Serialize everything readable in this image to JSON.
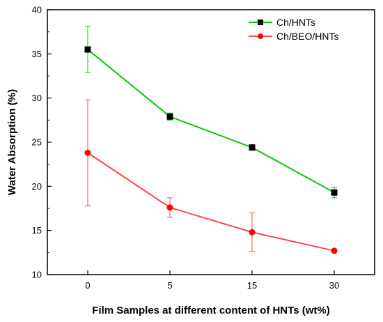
{
  "chart_data": {
    "type": "line",
    "title": "",
    "xlabel": "Film Samples at different content of HNTs (wt%)",
    "ylabel": "Water Absorption (%)",
    "categories": [
      "0",
      "5",
      "15",
      "30"
    ],
    "ylim": [
      10,
      40
    ],
    "yticks": [
      10,
      15,
      20,
      25,
      30,
      35,
      40
    ],
    "grid": false,
    "legend_position": "top-right",
    "series": [
      {
        "name": "Ch/HNTs",
        "color": "#00cc00",
        "marker": "square",
        "marker_color": "#000000",
        "values": [
          35.5,
          27.9,
          24.4,
          19.3
        ],
        "errors": [
          2.6,
          0.4,
          0.1,
          0.6
        ]
      },
      {
        "name": "Ch/BEO/HNTs",
        "color": "#ff4444",
        "marker": "circle",
        "marker_color": "#ff0000",
        "values": [
          23.8,
          17.6,
          14.8,
          12.7
        ],
        "errors": [
          6.0,
          1.1,
          2.2,
          0.1
        ]
      }
    ]
  }
}
